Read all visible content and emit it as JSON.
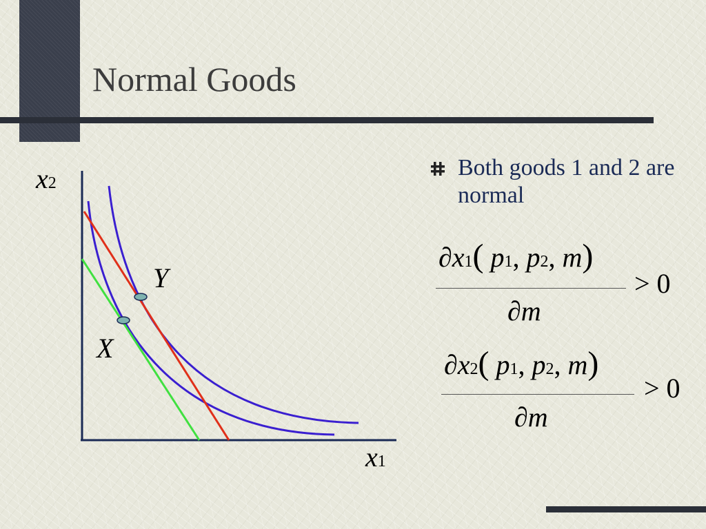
{
  "slide": {
    "title": "Normal Goods",
    "bullet": "Both goods 1 and 2 are normal"
  },
  "graph": {
    "y_axis": {
      "var": "x",
      "sub": "2"
    },
    "x_axis": {
      "var": "x",
      "sub": "1"
    },
    "point_labels": {
      "upper": "Y",
      "lower": "X"
    },
    "colors": {
      "indifference_curves": "#3a1fd0",
      "budget_line_new": "#e0301a",
      "budget_line_old": "#40e040",
      "points_fill": "#7fb3b0",
      "axes": "#1a2a55"
    }
  },
  "equations": [
    {
      "partial": "∂",
      "var": "x",
      "var_sub": "1",
      "p1": "p",
      "p1_sub": "1",
      "p2": "p",
      "p2_sub": "2",
      "m": "m",
      "den_partial": "∂",
      "den_var": "m",
      "relation": "> 0"
    },
    {
      "partial": "∂",
      "var": "x",
      "var_sub": "2",
      "p1": "p",
      "p1_sub": "1",
      "p2": "p",
      "p2_sub": "2",
      "m": "m",
      "den_partial": "∂",
      "den_var": "m",
      "relation": "> 0"
    }
  ]
}
